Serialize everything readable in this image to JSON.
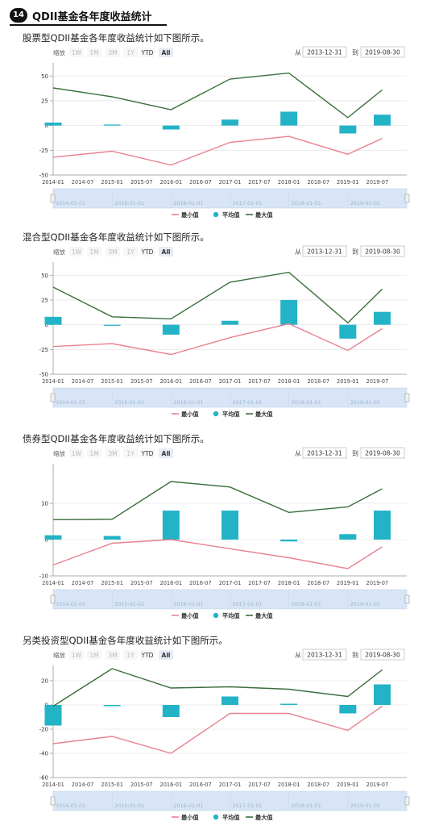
{
  "header": {
    "number": "14",
    "title": "QDII基金各年度收益统计"
  },
  "toolbar": {
    "zoom_label": "缩放",
    "zoom_buttons": [
      "1W",
      "1M",
      "3M",
      "1Y",
      "YTD",
      "All"
    ],
    "active_button": "All",
    "from_label": "从",
    "from_date": "2013-12-31",
    "to_label": "到",
    "to_date": "2019-08-30"
  },
  "x_ticks": [
    "2014-01",
    "2014-07",
    "2015-01",
    "2015-07",
    "2016-01",
    "2016-07",
    "2017-01",
    "2017-07",
    "2018-01",
    "2018-07",
    "2019-01",
    "2019-07"
  ],
  "navigator_labels": [
    "2014-01-01",
    "2015-01-01",
    "2016-01-01",
    "2017-01-01",
    "2018-01-01",
    "2019-01-01"
  ],
  "legend": [
    "最小值",
    "平均值",
    "最大值"
  ],
  "colors": {
    "min": "#e8828f",
    "avg": "#23b3c7",
    "max": "#3b6e3b",
    "navigator": "#d7e5f6"
  },
  "sections": [
    {
      "title": "股票型QDII基金各年度收益统计如下图所示。",
      "chart_data": {
        "type": "bar+line",
        "x": [
          "2014-01",
          "2015-01",
          "2016-01",
          "2017-01",
          "2018-01",
          "2019-01",
          "2019-08"
        ],
        "series": [
          {
            "name": "最小值",
            "type": "line",
            "values": [
              -32,
              -26,
              -40,
              -17,
              -11,
              -29,
              -13
            ]
          },
          {
            "name": "平均值",
            "type": "bar",
            "values": [
              3,
              1,
              -4,
              6,
              14,
              -8,
              11
            ]
          },
          {
            "name": "最大值",
            "type": "line",
            "values": [
              38,
              29,
              16,
              47,
              53,
              8,
              36
            ]
          }
        ],
        "yticks": [
          50,
          25,
          0,
          -25,
          -50
        ],
        "ylim": [
          -50,
          60
        ]
      }
    },
    {
      "title": "混合型QDII基金各年度收益统计如下图所示。",
      "chart_data": {
        "type": "bar+line",
        "x": [
          "2014-01",
          "2015-01",
          "2016-01",
          "2017-01",
          "2018-01",
          "2019-01",
          "2019-08"
        ],
        "series": [
          {
            "name": "最小值",
            "type": "line",
            "values": [
              -22,
              -19,
              -30,
              -13,
              1,
              -26,
              -4
            ]
          },
          {
            "name": "平均值",
            "type": "bar",
            "values": [
              8,
              -1,
              -10,
              4,
              25,
              -14,
              13
            ]
          },
          {
            "name": "最大值",
            "type": "line",
            "values": [
              38,
              8,
              6,
              43,
              53,
              2,
              36
            ]
          }
        ],
        "yticks": [
          50,
          25,
          0,
          -25,
          -50
        ],
        "ylim": [
          -50,
          60
        ]
      }
    },
    {
      "title": "债券型QDII基金各年度收益统计如下图所示。",
      "chart_data": {
        "type": "bar+line",
        "x": [
          "2014-01",
          "2015-01",
          "2016-01",
          "2017-01",
          "2018-01",
          "2019-01",
          "2019-08"
        ],
        "series": [
          {
            "name": "最小值",
            "type": "line",
            "values": [
              -7,
              -1,
              0,
              -2.5,
              -5,
              -8,
              -2
            ]
          },
          {
            "name": "平均值",
            "type": "bar",
            "values": [
              1.2,
              1,
              8,
              8,
              -0.5,
              1.5,
              8
            ]
          },
          {
            "name": "最大值",
            "type": "line",
            "values": [
              5.5,
              5.6,
              16,
              14.5,
              7.5,
              9,
              14
            ]
          }
        ],
        "yticks": [
          10,
          0,
          -10
        ],
        "ylim": [
          -10,
          20
        ]
      }
    },
    {
      "title": "另类投资型QDII基金各年度收益统计如下图所示。",
      "chart_data": {
        "type": "bar+line",
        "x": [
          "2014-01",
          "2015-01",
          "2016-01",
          "2017-01",
          "2018-01",
          "2019-01",
          "2019-08"
        ],
        "series": [
          {
            "name": "最小值",
            "type": "line",
            "values": [
              -32,
              -26,
              -40,
              -7,
              -7,
              -21,
              -1
            ]
          },
          {
            "name": "平均值",
            "type": "bar",
            "values": [
              -17,
              -1,
              -10,
              7,
              1,
              -7,
              17
            ]
          },
          {
            "name": "最大值",
            "type": "line",
            "values": [
              -1,
              30,
              14,
              15,
              13,
              7,
              29
            ]
          }
        ],
        "yticks": [
          20,
          0,
          -20,
          -40,
          -60
        ],
        "ylim": [
          -60,
          30
        ]
      }
    }
  ]
}
